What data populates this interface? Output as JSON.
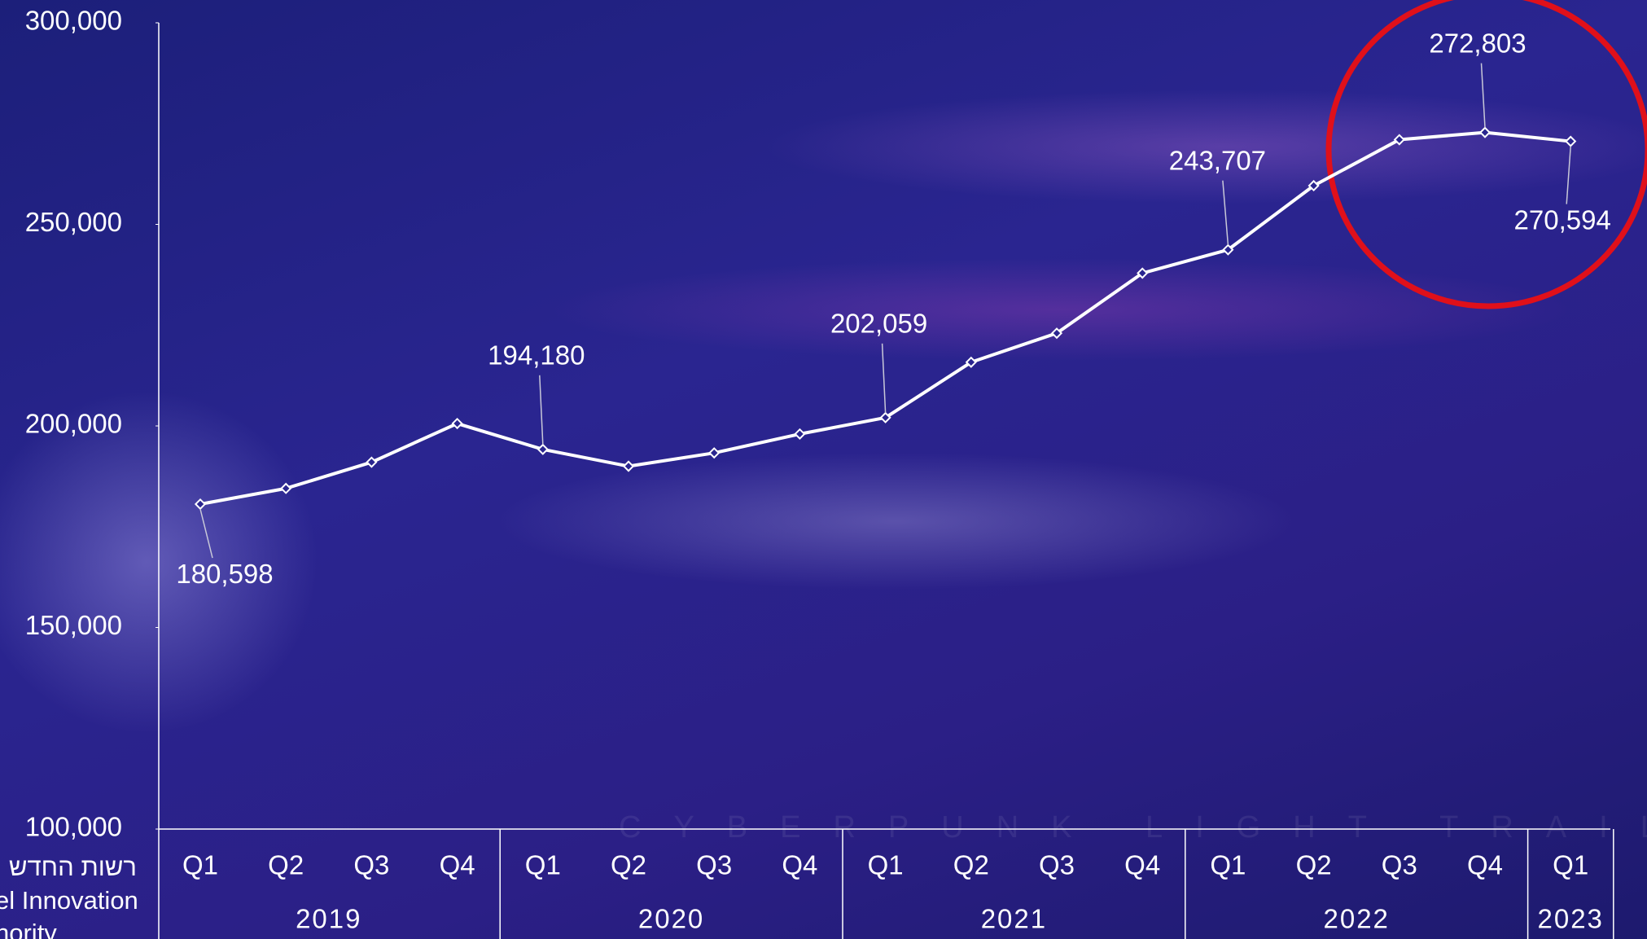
{
  "chart_data": {
    "type": "line",
    "categories": [
      "Q1",
      "Q2",
      "Q3",
      "Q4",
      "Q1",
      "Q2",
      "Q3",
      "Q4",
      "Q1",
      "Q2",
      "Q3",
      "Q4",
      "Q1",
      "Q2",
      "Q3",
      "Q4",
      "Q1"
    ],
    "category_groups": [
      "2019",
      "2019",
      "2019",
      "2019",
      "2020",
      "2020",
      "2020",
      "2020",
      "2021",
      "2021",
      "2021",
      "2021",
      "2022",
      "2022",
      "2022",
      "2022",
      "2023"
    ],
    "series": [
      {
        "color": "#ffffff",
        "values": [
          180598,
          184500,
          191000,
          200600,
          194180,
          190000,
          193300,
          198000,
          202059,
          215800,
          223000,
          237900,
          243707,
          259600,
          271000,
          272803,
          270594
        ],
        "value_labels": [
          "180,598",
          null,
          null,
          null,
          "194,180",
          null,
          null,
          null,
          "202,059",
          null,
          null,
          null,
          "243,707",
          null,
          null,
          "272,803",
          "270,594"
        ]
      }
    ],
    "ylim": [
      100000,
      300000
    ],
    "yticks": [
      {
        "value": 100000,
        "label": "100,000"
      },
      {
        "value": 150000,
        "label": "150,000"
      },
      {
        "value": 200000,
        "label": "200,000"
      },
      {
        "value": 250000,
        "label": "250,000"
      },
      {
        "value": 300000,
        "label": "300,000"
      }
    ],
    "logo": [
      "רשות החדש",
      "el Innovation",
      "hority"
    ],
    "watermark": "CYBERPUNK LIGHT TRAIL"
  }
}
